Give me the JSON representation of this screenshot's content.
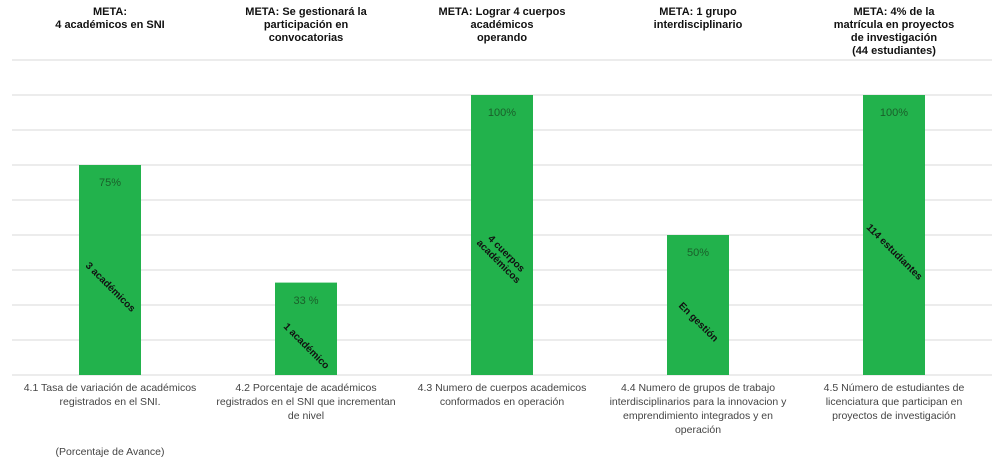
{
  "chart_data": {
    "type": "bar",
    "goals": [
      "META:\n4 académicos en SNI",
      "META: Se gestionará la\nparticipación en\nconvocatorias",
      "META: Lograr 4 cuerpos académicos\noperando",
      "META: 1 grupo\ninterdisciplinario",
      "META: 4% de la\nmatrícula en proyectos\nde investigación\n(44 estudiantes)"
    ],
    "categories": [
      "4.1 Tasa de variación de académicos registrados en el SNI.",
      "4.2 Porcentaje de académicos registrados en el SNI que incrementan de nivel",
      "4.3 Numero de cuerpos academicos conformados en operación",
      "4.4 Numero de grupos de trabajo interdisciplinarios para la innovacion y emprendimiento integrados y en operación",
      "4.5 Número de estudiantes de licenciatura que participan en proyectos de investigación"
    ],
    "note": "(Porcentaje de Avance)",
    "values": [
      75,
      33,
      100,
      50,
      100
    ],
    "value_labels": [
      "75%",
      "33 %",
      "100%",
      "50%",
      "100%"
    ],
    "bar_labels": [
      "3 académicos",
      "1 académico",
      "4 cuerpos\nacadémicos",
      "En gestión",
      "114 estudiantes"
    ],
    "color": "#22b24c",
    "ylim": [
      0,
      112.5
    ],
    "yticks": [
      0,
      12.5,
      25,
      37.5,
      50,
      62.5,
      75,
      87.5,
      100,
      112.5
    ],
    "grid": true
  }
}
